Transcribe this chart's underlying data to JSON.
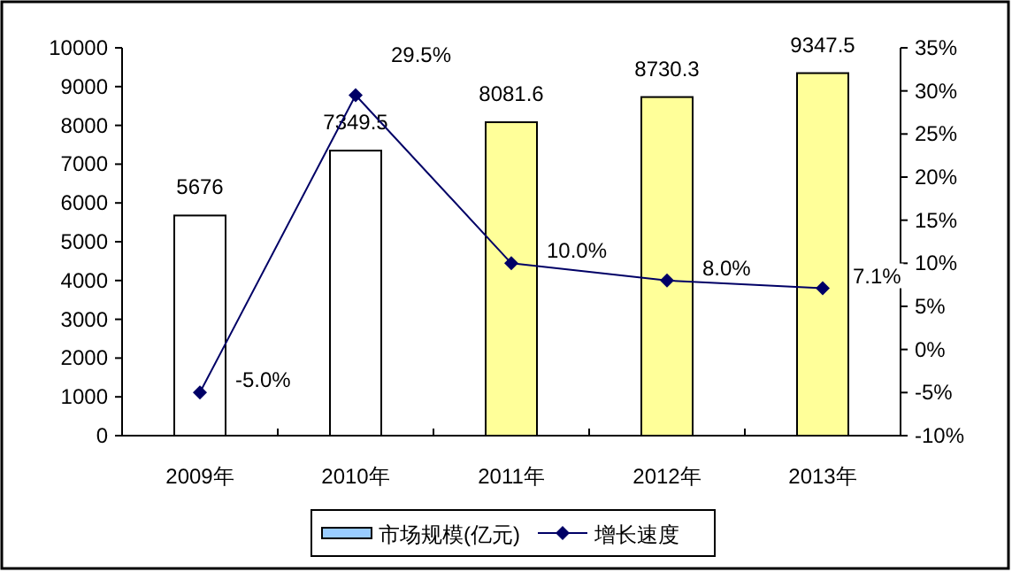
{
  "chart_data": {
    "type": "bar",
    "categories": [
      "2009年",
      "2010年",
      "2011年",
      "2012年",
      "2013年"
    ],
    "series": [
      {
        "name": "市场规模(亿元)",
        "color": "#99ccff",
        "colors": [
          "#ffffff",
          "#ffffff",
          "#ffff99",
          "#ffff99",
          "#ffff99"
        ],
        "values": [
          5676,
          7349.5,
          8081.6,
          8730.3,
          9347.5
        ],
        "value_labels": [
          "5676",
          "7349.5",
          "8081.6",
          "8730.3",
          "9347.5"
        ]
      },
      {
        "name": "增长速度",
        "type": "line",
        "axis": "y2",
        "color": "#000066",
        "marker": "diamond",
        "values": [
          -5.0,
          29.5,
          10.0,
          8.0,
          7.1
        ],
        "value_labels": [
          "-5.0%",
          "29.5%",
          "10.0%",
          "8.0%",
          "7.1%"
        ]
      }
    ],
    "ylim": [
      0,
      10000
    ],
    "yticks": [
      0,
      1000,
      2000,
      3000,
      4000,
      5000,
      6000,
      7000,
      8000,
      9000,
      10000
    ],
    "y2lim": [
      -10,
      35
    ],
    "y2ticks": [
      {
        "value": -10,
        "label": "-10%"
      },
      {
        "value": -5,
        "label": "-5%"
      },
      {
        "value": 0,
        "label": "0%"
      },
      {
        "value": 5,
        "label": "5%"
      },
      {
        "value": 10,
        "label": "10%"
      },
      {
        "value": 15,
        "label": "15%"
      },
      {
        "value": 20,
        "label": "20%"
      },
      {
        "value": 25,
        "label": "25%"
      },
      {
        "value": 30,
        "label": "30%"
      },
      {
        "value": 35,
        "label": "35%"
      }
    ],
    "grid": false,
    "legend": "bottom"
  }
}
